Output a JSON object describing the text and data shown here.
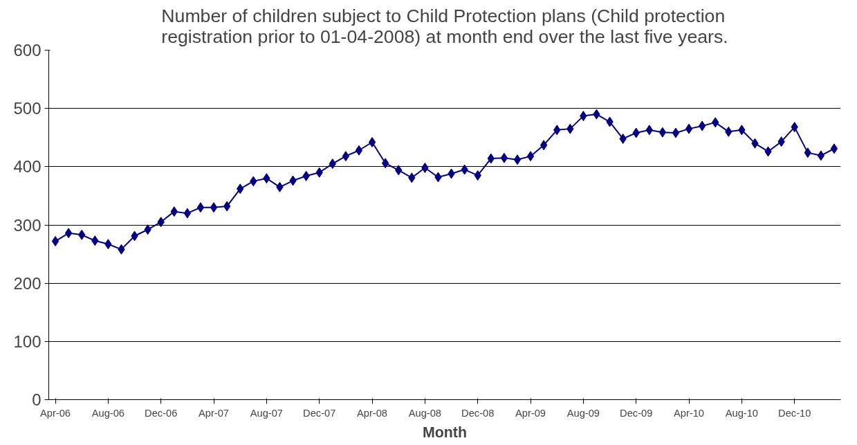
{
  "chart_data": {
    "type": "line",
    "title": "Number of children subject to Child Protection plans (Child protection registration prior to 01-04-2008) at month end over the last five years.",
    "xlabel": "Month",
    "categories": [
      "Apr-06",
      null,
      null,
      null,
      "Aug-06",
      null,
      null,
      null,
      "Dec-06",
      null,
      null,
      null,
      "Apr-07",
      null,
      null,
      null,
      "Aug-07",
      null,
      null,
      null,
      "Dec-07",
      null,
      null,
      null,
      "Apr-08",
      null,
      null,
      null,
      "Aug-08",
      null,
      null,
      null,
      "Dec-08",
      null,
      null,
      null,
      "Apr-09",
      null,
      null,
      null,
      "Aug-09",
      null,
      null,
      null,
      "Dec-09",
      null,
      null,
      null,
      "Apr-10",
      null,
      null,
      null,
      "Aug-10",
      null,
      null,
      null,
      "Dec-10",
      null,
      null,
      null
    ],
    "series": [
      {
        "color": "#000080",
        "values": [
          272,
          286,
          283,
          273,
          267,
          258,
          281,
          292,
          305,
          323,
          320,
          330,
          330,
          332,
          362,
          375,
          380,
          365,
          376,
          384,
          390,
          405,
          418,
          428,
          442,
          406,
          394,
          381,
          398,
          382,
          388,
          395,
          385,
          414,
          415,
          412,
          418,
          437,
          463,
          465,
          487,
          490,
          477,
          448,
          458,
          463,
          459,
          458,
          465,
          470,
          476,
          460,
          463,
          440,
          426,
          443,
          468,
          424,
          419,
          431
        ]
      }
    ],
    "ylim": [
      0,
      600
    ],
    "yticks": [
      0,
      100,
      200,
      300,
      400,
      500,
      600
    ],
    "grid": "y",
    "marker": "diamond",
    "line_style": "solid"
  }
}
